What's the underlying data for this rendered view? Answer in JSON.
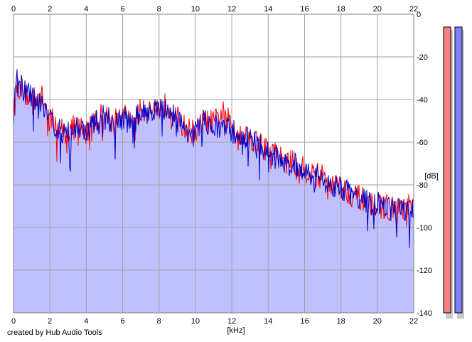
{
  "chart_data": {
    "type": "area",
    "xlabel": "[kHz]",
    "ylabel": "[dB]",
    "xlim": [
      0,
      22
    ],
    "ylim": [
      -140,
      0
    ],
    "x_ticks": [
      0,
      2,
      4,
      6,
      8,
      10,
      12,
      14,
      16,
      18,
      20,
      22
    ],
    "y_ticks": [
      0,
      -20,
      -40,
      -60,
      -80,
      -100,
      -120,
      -140
    ],
    "grid": true,
    "series": [
      {
        "color": "#ff0000",
        "x": [
          0.0,
          0.2,
          0.5,
          1.0,
          1.5,
          2.0,
          2.5,
          3.0,
          3.5,
          4.0,
          4.5,
          5.0,
          5.5,
          6.0,
          6.5,
          7.0,
          7.5,
          8.0,
          8.5,
          9.0,
          9.5,
          10.0,
          10.5,
          11.0,
          11.5,
          12.0,
          12.5,
          13.0,
          13.5,
          14.0,
          14.5,
          15.0,
          15.5,
          16.0,
          16.5,
          17.0,
          17.5,
          18.0,
          18.5,
          19.0,
          19.5,
          20.0,
          20.5,
          21.0,
          21.5,
          22.0
        ],
        "y": [
          -48,
          -33,
          -36,
          -40,
          -38,
          -48,
          -54,
          -55,
          -52,
          -55,
          -50,
          -46,
          -51,
          -47,
          -51,
          -45,
          -44,
          -44,
          -42,
          -49,
          -54,
          -55,
          -50,
          -51,
          -46,
          -52,
          -56,
          -58,
          -60,
          -64,
          -66,
          -69,
          -70,
          -73,
          -75,
          -76,
          -79,
          -81,
          -84,
          -86,
          -88,
          -90,
          -90,
          -92,
          -90,
          -91
        ]
      },
      {
        "color": "#0000cc",
        "x": [
          0.0,
          0.2,
          0.5,
          1.0,
          1.5,
          2.0,
          2.5,
          3.0,
          3.5,
          4.0,
          4.5,
          5.0,
          5.5,
          6.0,
          6.5,
          7.0,
          7.5,
          8.0,
          8.5,
          9.0,
          9.5,
          10.0,
          10.5,
          11.0,
          11.5,
          12.0,
          12.5,
          13.0,
          13.5,
          14.0,
          14.5,
          15.0,
          15.5,
          16.0,
          16.5,
          17.0,
          17.5,
          18.0,
          18.5,
          19.0,
          19.5,
          20.0,
          20.5,
          21.0,
          21.5,
          22.0
        ],
        "y": [
          -45,
          -30,
          -35,
          -39,
          -40,
          -48,
          -55,
          -56,
          -53,
          -55,
          -51,
          -47,
          -51,
          -48,
          -52,
          -46,
          -45,
          -45,
          -44,
          -50,
          -54,
          -56,
          -50,
          -53,
          -53,
          -55,
          -57,
          -59,
          -62,
          -65,
          -67,
          -70,
          -71,
          -73,
          -76,
          -77,
          -80,
          -82,
          -84,
          -86,
          -88,
          -89,
          -91,
          -92,
          -91,
          -92
        ]
      }
    ],
    "level_meters": [
      {
        "color": "#ff8080"
      },
      {
        "color": "#8080ff"
      }
    ]
  },
  "footer": {
    "note": "created by Hub Audio Tools"
  }
}
